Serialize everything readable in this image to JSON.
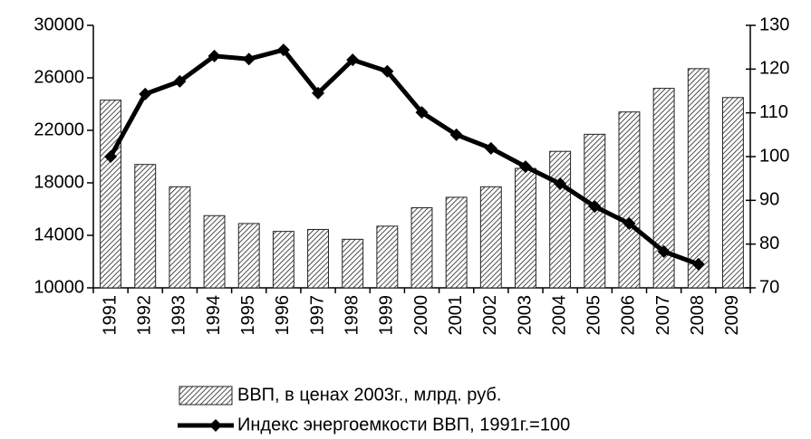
{
  "chart_data": {
    "type": "bar_line",
    "categories": [
      "1991",
      "1992",
      "1993",
      "1994",
      "1995",
      "1996",
      "1997",
      "1998",
      "1999",
      "2000",
      "2001",
      "2002",
      "2003",
      "2004",
      "2005",
      "2006",
      "2007",
      "2008",
      "2009"
    ],
    "series": [
      {
        "name": "ВВП, в ценах 2003г., млрд. руб.",
        "type": "bar",
        "color": "#222222",
        "values": [
          24300,
          19400,
          17700,
          15500,
          14900,
          14300,
          14450,
          13700,
          14700,
          16100,
          16900,
          17700,
          19100,
          20400,
          21700,
          23400,
          25200,
          26700,
          24500
        ]
      },
      {
        "name": "Индекс энергоемкости ВВП, 1991г.=100",
        "type": "line",
        "axis": "y2",
        "color": "#000000",
        "values": [
          100,
          114.3,
          117.2,
          123,
          122.3,
          124.4,
          114.5,
          122.1,
          119.5,
          110.1,
          105,
          101.9,
          97.7,
          93.8,
          88.6,
          84.7,
          78.3,
          75.4,
          null
        ]
      }
    ],
    "ylim": [
      10000,
      30000
    ],
    "yticks": [
      10000,
      14000,
      18000,
      22000,
      26000,
      30000
    ],
    "y2lim": [
      70,
      130
    ],
    "y2ticks": [
      70,
      80,
      90,
      100,
      110,
      120,
      130
    ],
    "legend": "bottom"
  }
}
